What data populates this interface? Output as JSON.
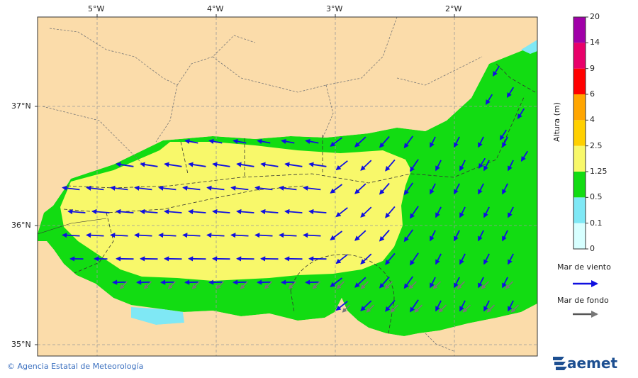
{
  "map": {
    "lon_labels": [
      "5°W",
      "4°W",
      "3°W",
      "2°W"
    ],
    "lat_labels": [
      "37°N",
      "36°N",
      "35°N"
    ],
    "colors": {
      "land": "#fbdcaa",
      "water_0_0_1": "#d7ffff",
      "water_0_1_0_5": "#7fe8f5",
      "water_0_5_1_25": "#12dc12",
      "water_1_25_2_5": "#f8f86a",
      "wind_arrow": "#1010e0",
      "swell_arrow": "#777777"
    }
  },
  "colorbar": {
    "title": "Altura (m)",
    "levels": [
      "0",
      "0.1",
      "0.5",
      "1.25",
      "2.5",
      "4",
      "6",
      "9",
      "14",
      "20"
    ],
    "colors": [
      "#d7ffff",
      "#7fe8f5",
      "#12dc12",
      "#f8f86a",
      "#ffd000",
      "#ffa500",
      "#ff0000",
      "#e8006a",
      "#a000a8"
    ]
  },
  "legend": {
    "wind_label": "Mar de viento",
    "swell_label": "Mar de fondo"
  },
  "footer": {
    "credit": "Agencia Estatal de Meteorología",
    "brand": "aemet"
  }
}
